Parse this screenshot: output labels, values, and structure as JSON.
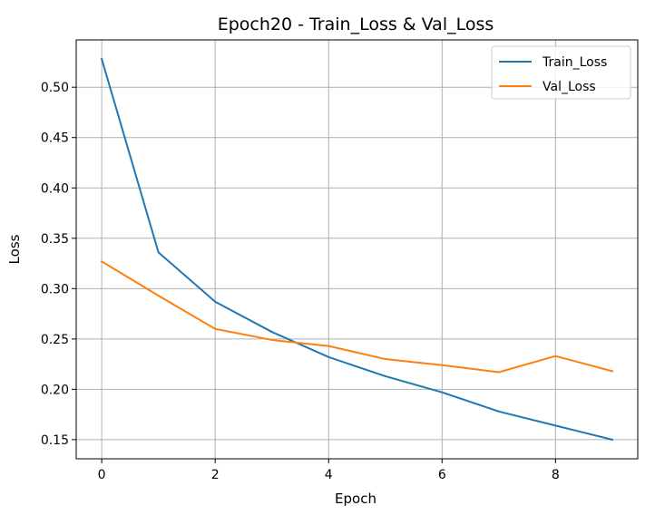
{
  "chart_data": {
    "type": "line",
    "title": "Epoch20 - Train_Loss & Val_Loss",
    "xlabel": "Epoch",
    "ylabel": "Loss",
    "xlim": [
      -0.45,
      9.45
    ],
    "ylim": [
      0.131,
      0.547
    ],
    "xticks": [
      0,
      2,
      4,
      6,
      8
    ],
    "yticks": [
      0.15,
      0.2,
      0.25,
      0.3,
      0.35,
      0.4,
      0.45,
      0.5
    ],
    "ytick_labels": [
      "0.15",
      "0.20",
      "0.25",
      "0.30",
      "0.35",
      "0.40",
      "0.45",
      "0.50"
    ],
    "x": [
      0,
      1,
      2,
      3,
      4,
      5,
      6,
      7,
      8,
      9
    ],
    "grid": true,
    "legend_position": "top-right",
    "series": [
      {
        "name": "Train_Loss",
        "color": "#1f77b4",
        "values": [
          0.528,
          0.336,
          0.287,
          0.257,
          0.232,
          0.213,
          0.197,
          0.178,
          0.164,
          0.15
        ]
      },
      {
        "name": "Val_Loss",
        "color": "#ff7f0e",
        "values": [
          0.327,
          0.293,
          0.26,
          0.249,
          0.243,
          0.23,
          0.224,
          0.217,
          0.233,
          0.218
        ]
      }
    ]
  }
}
